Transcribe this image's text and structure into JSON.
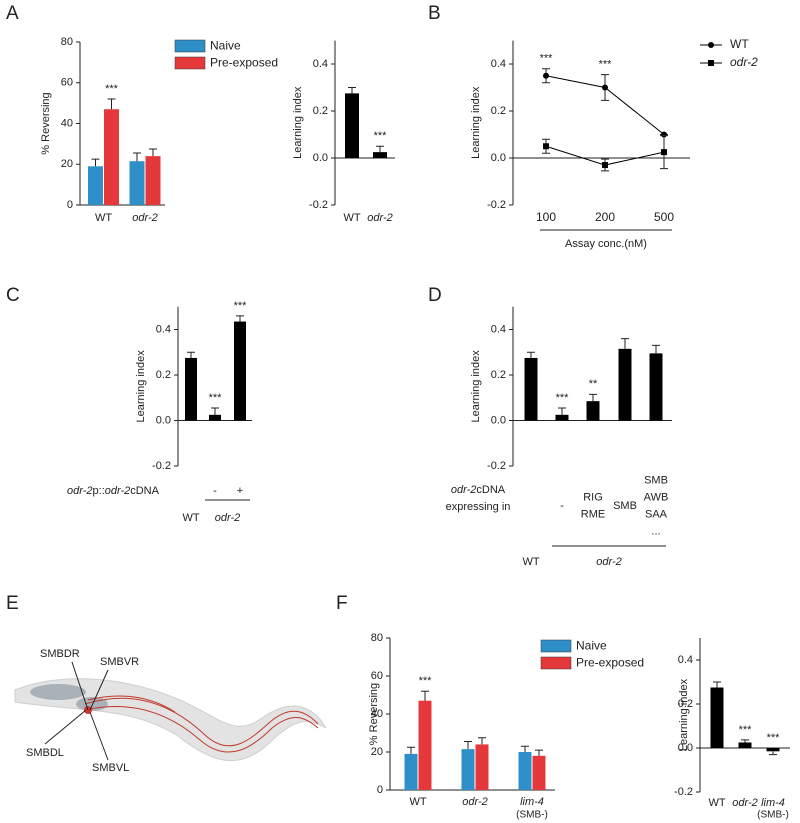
{
  "panels": [
    "A",
    "B",
    "C",
    "D",
    "E",
    "F"
  ],
  "diagram": {
    "labels": [
      "SMBDR",
      "SMBVR",
      "SMBDL",
      "SMBVL"
    ]
  },
  "chart_data": [
    {
      "type": "grouped_bar",
      "ylabel": "% Reversing",
      "categories": [
        "WT",
        "odr-2"
      ],
      "italic": [
        false,
        true
      ],
      "series": [
        {
          "name": "Naive",
          "color": "#2f8fc9",
          "values": [
            19,
            21.5
          ],
          "errors": [
            3.5,
            4
          ]
        },
        {
          "name": "Pre-exposed",
          "color": "#e5383b",
          "values": [
            47,
            24
          ],
          "errors": [
            5,
            3.5
          ],
          "annotations": [
            "***",
            null
          ]
        }
      ],
      "ylim": [
        0,
        80
      ],
      "yticks": [
        0,
        20,
        40,
        60,
        80
      ]
    },
    {
      "type": "bar",
      "ylabel": "Learning index",
      "categories": [
        "WT",
        "odr-2"
      ],
      "italic": [
        false,
        true
      ],
      "values": [
        0.275,
        0.025
      ],
      "errors": [
        0.025,
        0.025
      ],
      "annotations": [
        null,
        "***"
      ],
      "color": "#000000",
      "ylim": [
        -0.2,
        0.5
      ],
      "yticks": [
        -0.2,
        {
          "value": 0,
          "label": "0.0"
        },
        0.2,
        0.4
      ]
    },
    {
      "type": "line",
      "ylabel": "Learning index",
      "xlabel": "Assay conc.(nM)",
      "categories": [
        "100",
        "200",
        "500"
      ],
      "series": [
        {
          "name": "WT",
          "marker": "circle",
          "color": "#000000",
          "values": [
            0.35,
            0.3,
            0.1
          ],
          "errors": [
            0.03,
            0.055,
            0
          ],
          "annotations": [
            "***",
            "***",
            null
          ]
        },
        {
          "name": "odr-2",
          "italic": true,
          "marker": "square",
          "color": "#000000",
          "values": [
            0.05,
            -0.03,
            0.025
          ],
          "errors": [
            0.03,
            0.025,
            0.07
          ]
        }
      ],
      "ylim": [
        -0.2,
        0.5
      ],
      "yticks": [
        -0.2,
        {
          "value": 0,
          "label": "0.0"
        },
        0.2,
        0.4
      ]
    },
    {
      "type": "bar",
      "ylabel": "Learning index",
      "values": [
        0.275,
        0.025,
        0.435
      ],
      "errors": [
        0.025,
        0.03,
        0.025
      ],
      "annotations": [
        null,
        "***",
        "***"
      ],
      "color": "#000000",
      "construct_label": [
        [
          {
            "text": "odr-2",
            "italic": true
          },
          {
            "text": "p::"
          },
          {
            "text": "odr-2",
            "italic": true
          },
          {
            "text": "cDNA"
          }
        ]
      ],
      "construct": [
        null,
        [
          "-"
        ],
        [
          "+"
        ]
      ],
      "groups": [
        {
          "label": "WT",
          "bars": [
            0
          ]
        },
        {
          "label": "odr-2",
          "italic": true,
          "bars": [
            1,
            2
          ]
        }
      ],
      "ylim": [
        -0.2,
        0.5
      ],
      "yticks": [
        -0.2,
        {
          "value": 0,
          "label": "0.0"
        },
        0.2,
        0.4
      ]
    },
    {
      "type": "bar",
      "ylabel": "Learning index",
      "values": [
        0.275,
        0.025,
        0.085,
        0.315,
        0.295
      ],
      "errors": [
        0.025,
        0.03,
        0.03,
        0.045,
        0.035
      ],
      "annotations": [
        null,
        "***",
        "**",
        null,
        null
      ],
      "color": "#000000",
      "construct_label": [
        [
          {
            "text": "odr-2",
            "italic": true
          },
          {
            "text": "cDNA"
          }
        ],
        [
          {
            "text": "expressing in"
          }
        ]
      ],
      "construct": [
        null,
        [
          "-"
        ],
        [
          "RIG",
          "RME"
        ],
        [
          "SMB"
        ],
        [
          "SMB",
          "AWB",
          "SAA",
          "..."
        ]
      ],
      "groups": [
        {
          "label": "WT",
          "bars": [
            0
          ]
        },
        {
          "label": "odr-2",
          "italic": true,
          "bars": [
            1,
            2,
            3,
            4
          ]
        }
      ],
      "ylim": [
        -0.2,
        0.5
      ],
      "yticks": [
        -0.2,
        {
          "value": 0,
          "label": "0.0"
        },
        0.2,
        0.4
      ]
    },
    {
      "type": "grouped_bar",
      "ylabel": "% Reversing",
      "categories": [
        "WT",
        "odr-2",
        "lim-4"
      ],
      "sublabels": [
        null,
        null,
        "(SMB-)"
      ],
      "italic": [
        false,
        true,
        true
      ],
      "series": [
        {
          "name": "Naive",
          "color": "#2f8fc9",
          "values": [
            19,
            21.5,
            20
          ],
          "errors": [
            3.5,
            4,
            3
          ]
        },
        {
          "name": "Pre-exposed",
          "color": "#e5383b",
          "values": [
            47,
            24,
            18
          ],
          "errors": [
            5,
            3.5,
            3
          ],
          "annotations": [
            "***",
            null,
            null
          ]
        }
      ],
      "ylim": [
        0,
        80
      ],
      "yticks": [
        0,
        20,
        40,
        60,
        80
      ]
    },
    {
      "type": "bar",
      "ylabel": "Learning index",
      "categories": [
        "WT",
        "odr-2",
        "lim-4"
      ],
      "sublabels": [
        null,
        null,
        "(SMB-)"
      ],
      "italic": [
        false,
        true,
        true
      ],
      "values": [
        0.275,
        0.025,
        -0.015
      ],
      "errors": [
        0.025,
        0.012,
        0.015
      ],
      "annotations": [
        null,
        "***",
        "***"
      ],
      "color": "#000000",
      "ylim": [
        -0.2,
        0.5
      ],
      "yticks": [
        -0.2,
        {
          "value": 0,
          "label": "0.0"
        },
        0.2,
        0.4
      ]
    }
  ]
}
